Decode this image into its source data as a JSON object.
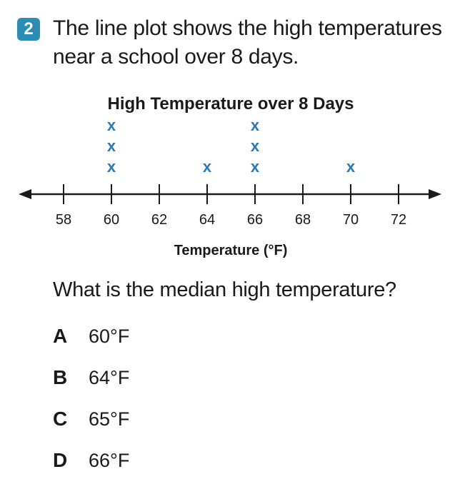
{
  "problem": {
    "number": "2",
    "prompt": "The line plot shows the high temperatures near a school over 8 days.",
    "question": "What is the median high temperature?"
  },
  "chart_data": {
    "type": "line_plot",
    "title": "High Temperature over 8 Days",
    "xlabel": "Temperature (°F)",
    "ticks": [
      58,
      60,
      62,
      64,
      66,
      68,
      70,
      72
    ],
    "tick_labels": [
      "58",
      "60",
      "62",
      "64",
      "66",
      "68",
      "70",
      "72"
    ],
    "xlim": [
      58,
      72
    ],
    "marker": "x",
    "values": [
      60,
      60,
      60,
      64,
      66,
      66,
      66,
      70
    ],
    "counts": [
      {
        "x": 60,
        "count": 3
      },
      {
        "x": 64,
        "count": 1
      },
      {
        "x": 66,
        "count": 3
      },
      {
        "x": 70,
        "count": 1
      }
    ],
    "colors": {
      "marker": "#2a79b8",
      "axis": "#1a1a1a"
    }
  },
  "choices": [
    {
      "letter": "A",
      "text": "60°F"
    },
    {
      "letter": "B",
      "text": "64°F"
    },
    {
      "letter": "C",
      "text": "65°F"
    },
    {
      "letter": "D",
      "text": "66°F"
    }
  ]
}
